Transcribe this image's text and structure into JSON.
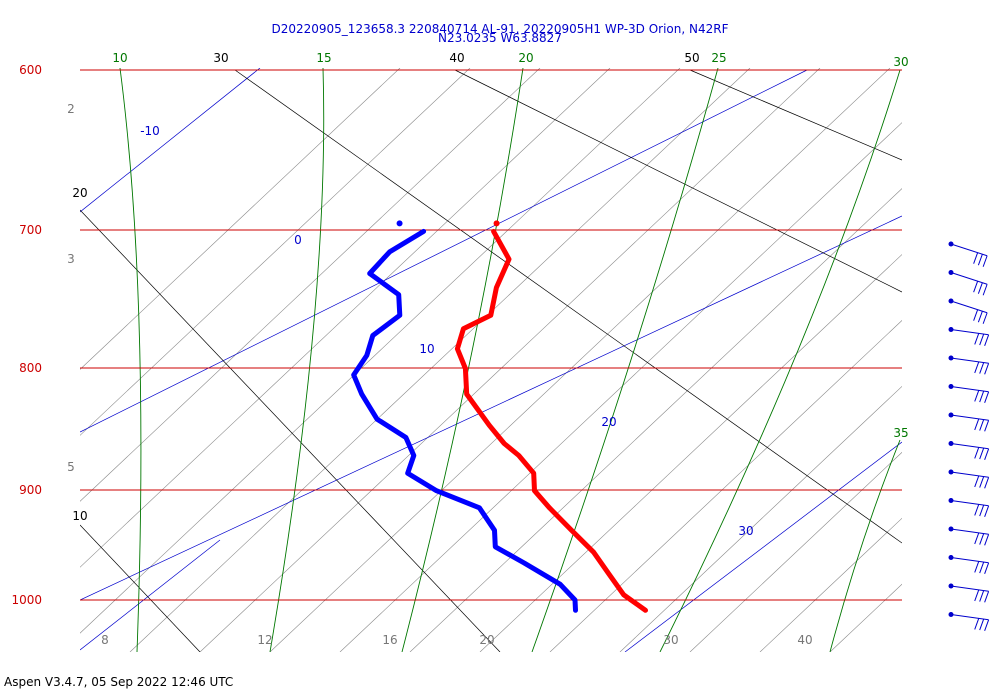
{
  "title_line1": "D20220905_123658.3 220840714 AL-91, 20220905H1 WP-3D Orion, N42RF",
  "title_line2": "N23.0235 W63.8827",
  "footer": "Aspen V3.4.7, 05 Sep 2022  12:46 UTC",
  "colors": {
    "temperature": "#ff0000",
    "dewpoint": "#0000ff",
    "isobar": "#cc0000",
    "mixing_ratio": "#000000",
    "isotherm": "#0000cc",
    "moist_adiabat": "#007700",
    "dry_adiabat": "#888888",
    "wind_barb": "#0000cc"
  },
  "chart_data": {
    "type": "line",
    "pressure_levels": [
      "600",
      "700",
      "800",
      "900",
      "1000"
    ],
    "mixing_ratio_labels": [
      "30",
      "40",
      "50",
      "20",
      "10"
    ],
    "moist_adiabat_labels": [
      "10",
      "15",
      "20",
      "25",
      "30",
      "35"
    ],
    "isotherm_labels": [
      "-10",
      "0",
      "10",
      "20",
      "30"
    ],
    "dry_adiabat_labels": [
      "2",
      "3",
      "5"
    ],
    "bottom_axis_labels": [
      "8",
      "12",
      "16",
      "20",
      "30",
      "40"
    ],
    "series": [
      {
        "name": "temperature",
        "points": [
          [
            701,
            13.0
          ],
          [
            720,
            14.0
          ],
          [
            740,
            13.0
          ],
          [
            760,
            12.5
          ],
          [
            770,
            10.5
          ],
          [
            785,
            10.0
          ],
          [
            800,
            10.5
          ],
          [
            820,
            10.5
          ],
          [
            845,
            12.0
          ],
          [
            860,
            13.0
          ],
          [
            870,
            14.0
          ],
          [
            885,
            15.0
          ],
          [
            900,
            15.0
          ],
          [
            915,
            16.0
          ],
          [
            935,
            17.5
          ],
          [
            955,
            19.0
          ],
          [
            975,
            20.0
          ],
          [
            995,
            21.0
          ],
          [
            1010,
            22.5
          ]
        ]
      },
      {
        "name": "dewpoint",
        "points": [
          [
            701,
            8.0
          ],
          [
            715,
            5.5
          ],
          [
            730,
            4.0
          ],
          [
            745,
            6.0
          ],
          [
            760,
            6.0
          ],
          [
            775,
            4.0
          ],
          [
            790,
            3.5
          ],
          [
            805,
            2.5
          ],
          [
            820,
            3.0
          ],
          [
            840,
            4.0
          ],
          [
            855,
            6.0
          ],
          [
            870,
            6.5
          ],
          [
            885,
            6.0
          ],
          [
            900,
            8.0
          ],
          [
            915,
            11.0
          ],
          [
            935,
            12.0
          ],
          [
            950,
            12.0
          ],
          [
            965,
            14.0
          ],
          [
            985,
            16.5
          ],
          [
            1000,
            17.5
          ],
          [
            1010,
            17.5
          ]
        ]
      }
    ],
    "wind_barbs_kt": [
      25,
      25,
      25,
      30,
      30,
      30,
      30,
      30,
      30,
      30,
      30,
      30,
      30,
      30
    ],
    "wind_dir_deg": [
      80,
      60,
      60,
      80,
      85,
      85,
      85,
      85,
      85,
      85,
      85,
      85,
      85,
      85
    ]
  }
}
